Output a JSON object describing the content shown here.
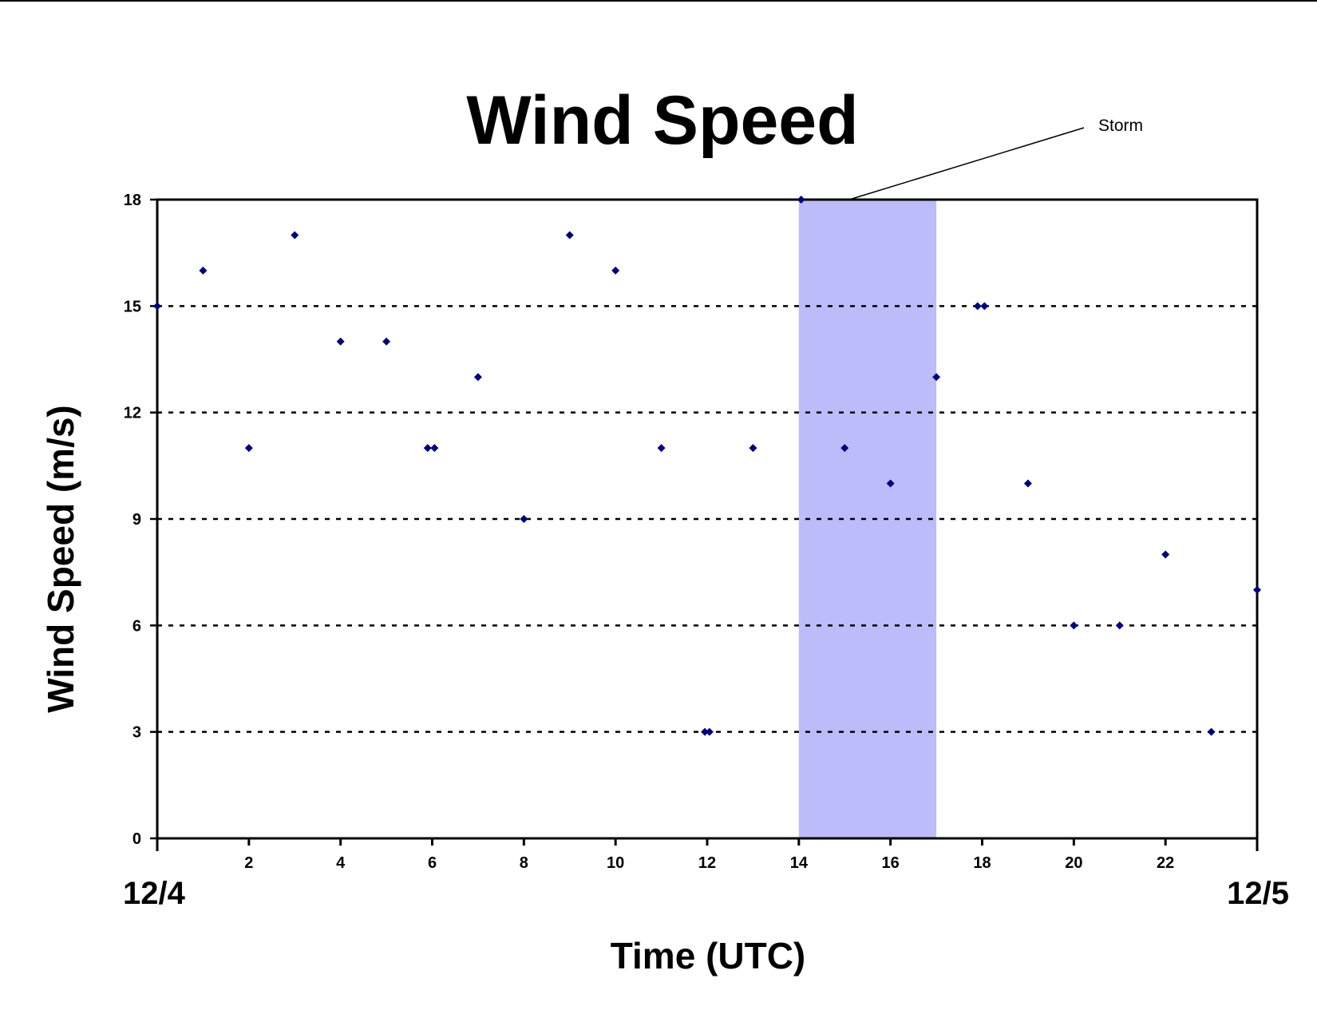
{
  "chart_data": {
    "type": "scatter",
    "title": "Wind Speed",
    "xlabel": "Time (UTC)",
    "ylabel": "Wind Speed (m/s)",
    "xlim": [
      0,
      24
    ],
    "ylim": [
      0,
      18
    ],
    "x_ticks": [
      0,
      2,
      4,
      6,
      8,
      10,
      12,
      14,
      16,
      18,
      20,
      22,
      24
    ],
    "x_tick_labels": [
      "",
      "2",
      "4",
      "6",
      "8",
      "10",
      "12",
      "14",
      "16",
      "18",
      "20",
      "22",
      ""
    ],
    "y_ticks": [
      0,
      3,
      6,
      9,
      12,
      15,
      18
    ],
    "y_tick_labels": [
      "0",
      "3",
      "6",
      "9",
      "12",
      "15",
      "18"
    ],
    "date_labels": {
      "start": "12/4",
      "end": "12/5"
    },
    "grid": {
      "y": "dotted",
      "x": "none"
    },
    "marker_color": "#00007a",
    "series": [
      {
        "points": [
          {
            "x": 0,
            "y": 15
          },
          {
            "x": 1,
            "y": 16
          },
          {
            "x": 2,
            "y": 11
          },
          {
            "x": 3,
            "y": 17
          },
          {
            "x": 4,
            "y": 14
          },
          {
            "x": 5,
            "y": 14
          },
          {
            "x": 5.9,
            "y": 11
          },
          {
            "x": 6.05,
            "y": 11
          },
          {
            "x": 7,
            "y": 13
          },
          {
            "x": 8,
            "y": 9
          },
          {
            "x": 9,
            "y": 17
          },
          {
            "x": 10,
            "y": 16
          },
          {
            "x": 11,
            "y": 11
          },
          {
            "x": 11.95,
            "y": 3
          },
          {
            "x": 12.05,
            "y": 3
          },
          {
            "x": 13,
            "y": 11
          },
          {
            "x": 14.05,
            "y": 18
          },
          {
            "x": 15,
            "y": 11
          },
          {
            "x": 16,
            "y": 10
          },
          {
            "x": 17,
            "y": 13
          },
          {
            "x": 17.9,
            "y": 15
          },
          {
            "x": 18.05,
            "y": 15
          },
          {
            "x": 19,
            "y": 10
          },
          {
            "x": 20,
            "y": 6
          },
          {
            "x": 21,
            "y": 6
          },
          {
            "x": 22,
            "y": 8
          },
          {
            "x": 23,
            "y": 3
          },
          {
            "x": 24,
            "y": 7
          }
        ]
      }
    ],
    "highlight_band": {
      "x_start": 14,
      "x_end": 17,
      "color": "#bcbcfa",
      "label": "Storm"
    }
  }
}
